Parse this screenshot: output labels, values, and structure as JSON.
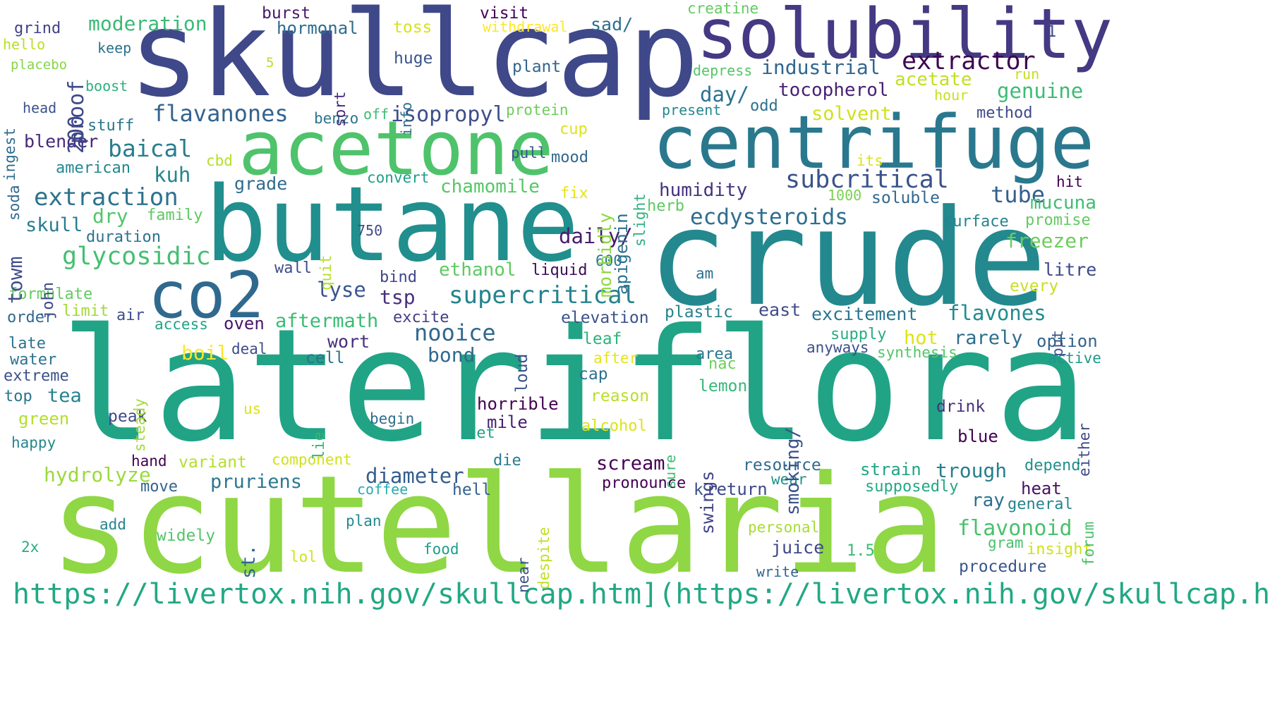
{
  "cloud": {
    "words": [
      {
        "text": "lateriflora",
        "color": "#21a386"
      },
      {
        "text": "scutellaria",
        "color": "#8fd744"
      },
      {
        "text": "skullcap",
        "color": "#3f4889"
      },
      {
        "text": "crude",
        "color": "#23898e"
      },
      {
        "text": "butane",
        "color": "#218f8d"
      },
      {
        "text": "centrifuge",
        "color": "#2a788e"
      },
      {
        "text": "acetone",
        "color": "#4ec36b"
      },
      {
        "text": "solubility",
        "color": "#443983"
      },
      {
        "text": "co2",
        "color": "#30698e"
      },
      {
        "text": "https://livertox.nih.gov/skullcap.htm](https://livertox.nih.gov/skullcap.htm",
        "color": "#22a884"
      },
      {
        "text": "extractor",
        "color": "#3e0751"
      },
      {
        "text": "subcritical",
        "color": "#3b528b"
      },
      {
        "text": "extraction",
        "color": "#2c728e"
      },
      {
        "text": "glycosidic",
        "color": "#44bf70"
      },
      {
        "text": "supercritical",
        "color": "#25838e"
      },
      {
        "text": "flavanones",
        "color": "#33638d"
      },
      {
        "text": "ecdysteroids",
        "color": "#2e6e8e"
      },
      {
        "text": "industrial",
        "color": "#31668e"
      },
      {
        "text": "tocopherol",
        "color": "#482173"
      },
      {
        "text": "genuine",
        "color": "#3dbc74"
      },
      {
        "text": "baical",
        "color": "#287d8e"
      },
      {
        "text": "isopropyl",
        "color": "#3d4e8a"
      },
      {
        "text": "moderation",
        "color": "#3aba76"
      },
      {
        "text": "hormonal",
        "color": "#2f6b8e"
      },
      {
        "text": "acetate",
        "color": "#c2df23"
      },
      {
        "text": "solvent",
        "color": "#d0e11c"
      },
      {
        "text": "day/",
        "color": "#2c718e"
      },
      {
        "text": "humidity",
        "color": "#46337f"
      },
      {
        "text": "tube",
        "color": "#34608d"
      },
      {
        "text": "mucuna",
        "color": "#40bd72"
      },
      {
        "text": "freezer",
        "color": "#6ccd5a"
      },
      {
        "text": "chamomile",
        "color": "#56c667"
      },
      {
        "text": "ethanol",
        "color": "#5ec962"
      },
      {
        "text": "daily/",
        "color": "#481c6e"
      },
      {
        "text": "lyse",
        "color": "#39568c"
      },
      {
        "text": "tsp",
        "color": "#472f7d"
      },
      {
        "text": "nooice",
        "color": "#31688e"
      },
      {
        "text": "aftermath",
        "color": "#3bbb75"
      },
      {
        "text": "flavones",
        "color": "#228c8d"
      },
      {
        "text": "excitement",
        "color": "#2a768e"
      },
      {
        "text": "flavonoid",
        "color": "#4ac16d"
      },
      {
        "text": "diameter",
        "color": "#365d8d"
      },
      {
        "text": "pruriens",
        "color": "#2a788e"
      },
      {
        "text": "hydrolyze",
        "color": "#9bd93c"
      },
      {
        "text": "scream",
        "color": "#440154"
      },
      {
        "text": "trough",
        "color": "#277f8e"
      },
      {
        "text": "resource",
        "color": "#2f6c8e"
      },
      {
        "text": "strain",
        "color": "#20a386"
      },
      {
        "text": "procedure",
        "color": "#3a548c"
      },
      {
        "text": "juice",
        "color": "#3e4989"
      },
      {
        "text": "kuh",
        "color": "#25858e"
      },
      {
        "text": "grade",
        "color": "#2f6c8e"
      },
      {
        "text": "dry",
        "color": "#52c569"
      },
      {
        "text": "skull",
        "color": "#287c8e"
      },
      {
        "text": "blender",
        "color": "#482878"
      },
      {
        "text": "american",
        "color": "#24868e"
      },
      {
        "text": "stuff",
        "color": "#2a768e"
      },
      {
        "text": "burst",
        "color": "#48186a"
      },
      {
        "text": "visit",
        "color": "#440154"
      },
      {
        "text": "toss",
        "color": "#d8e219"
      },
      {
        "text": "sad/",
        "color": "#2e6d8e"
      },
      {
        "text": "withdrawal",
        "color": "#fde725"
      },
      {
        "text": "creatine",
        "color": "#62cb5f"
      },
      {
        "text": "huge",
        "color": "#3a548c"
      },
      {
        "text": "plant",
        "color": "#32658e"
      },
      {
        "text": "grind",
        "color": "#404387"
      },
      {
        "text": "hello",
        "color": "#bade28"
      },
      {
        "text": "keep",
        "color": "#2c718e"
      },
      {
        "text": "placebo",
        "color": "#86d549"
      },
      {
        "text": "boost",
        "color": "#2cb17e"
      },
      {
        "text": "head",
        "color": "#3b528b"
      },
      {
        "text": "benzo",
        "color": "#2b748e"
      },
      {
        "text": "off",
        "color": "#3bbb75"
      },
      {
        "text": "protein",
        "color": "#6ccd5a"
      },
      {
        "text": "cup",
        "color": "#dde318"
      },
      {
        "text": "pull",
        "color": "#39568c"
      },
      {
        "text": "mood",
        "color": "#31688e"
      },
      {
        "text": "convert",
        "color": "#1f9e89"
      },
      {
        "text": "cbd",
        "color": "#b5de2b"
      },
      {
        "text": "fix",
        "color": "#e5e419"
      },
      {
        "text": "family",
        "color": "#5ec962"
      },
      {
        "text": "duration",
        "color": "#2c728e"
      },
      {
        "text": "750",
        "color": "#3e4a89"
      },
      {
        "text": "wall",
        "color": "#3d4e8a"
      },
      {
        "text": "liquid",
        "color": "#3f0c58"
      },
      {
        "text": "600",
        "color": "#2a788e"
      },
      {
        "text": "bind",
        "color": "#404588"
      },
      {
        "text": "formulate",
        "color": "#62cb5f"
      },
      {
        "text": "limit",
        "color": "#a2da37"
      },
      {
        "text": "air",
        "color": "#3c4f8a"
      },
      {
        "text": "order",
        "color": "#30698e"
      },
      {
        "text": "access",
        "color": "#1fa287"
      },
      {
        "text": "oven",
        "color": "#481769"
      },
      {
        "text": "excite",
        "color": "#423f85"
      },
      {
        "text": "wort",
        "color": "#46307e"
      },
      {
        "text": "elevation",
        "color": "#3a538b"
      },
      {
        "text": "plastic",
        "color": "#26828e"
      },
      {
        "text": "east",
        "color": "#3e4c8a"
      },
      {
        "text": "am",
        "color": "#2c718e"
      },
      {
        "text": "every",
        "color": "#c8e020"
      },
      {
        "text": "litre",
        "color": "#3e4989"
      },
      {
        "text": "supply",
        "color": "#26ad81"
      },
      {
        "text": "hot",
        "color": "#dde318"
      },
      {
        "text": "rarely",
        "color": "#2e6e8e"
      },
      {
        "text": "option",
        "color": "#33638d"
      },
      {
        "text": "anyways",
        "color": "#3d4e8a"
      },
      {
        "text": "synthesis",
        "color": "#54c568"
      },
      {
        "text": "area",
        "color": "#2b758e"
      },
      {
        "text": "nac",
        "color": "#6ece58"
      },
      {
        "text": "active",
        "color": "#1f978b"
      },
      {
        "text": "boil",
        "color": "#fde725"
      },
      {
        "text": "bond",
        "color": "#30698e"
      },
      {
        "text": "cell",
        "color": "#2c718e"
      },
      {
        "text": "deal",
        "color": "#3e4c8a"
      },
      {
        "text": "leaf",
        "color": "#2db27d"
      },
      {
        "text": "after",
        "color": "#e5e419"
      },
      {
        "text": "late",
        "color": "#2b748e"
      },
      {
        "text": "water",
        "color": "#2c728e"
      },
      {
        "text": "extreme",
        "color": "#3b528b"
      },
      {
        "text": "top",
        "color": "#2b748e"
      },
      {
        "text": "tea",
        "color": "#26828e"
      },
      {
        "text": "green",
        "color": "#b5de2b"
      },
      {
        "text": "happy",
        "color": "#23888e"
      },
      {
        "text": "peak",
        "color": "#3e4a89"
      },
      {
        "text": "begin",
        "color": "#2e6d8e"
      },
      {
        "text": "set",
        "color": "#1fa287"
      },
      {
        "text": "us",
        "color": "#dde318"
      },
      {
        "text": "cap",
        "color": "#2d708e"
      },
      {
        "text": "reason",
        "color": "#bade28"
      },
      {
        "text": "lemon",
        "color": "#35b779"
      },
      {
        "text": "horrible",
        "color": "#440154"
      },
      {
        "text": "mile",
        "color": "#482173"
      },
      {
        "text": "alcohol",
        "color": "#dde318"
      },
      {
        "text": "drink",
        "color": "#46307e"
      },
      {
        "text": "blue",
        "color": "#440154"
      },
      {
        "text": "hand",
        "color": "#440154"
      },
      {
        "text": "variant",
        "color": "#b5de2b"
      },
      {
        "text": "component",
        "color": "#d0e11c"
      },
      {
        "text": "die",
        "color": "#287c8e"
      },
      {
        "text": "move",
        "color": "#32648e"
      },
      {
        "text": "hell",
        "color": "#34618d"
      },
      {
        "text": "coffee",
        "color": "#25abb2"
      },
      {
        "text": "pronounce",
        "color": "#440154"
      },
      {
        "text": "k",
        "color": "#3b528b"
      },
      {
        "text": "return",
        "color": "#3e4989"
      },
      {
        "text": "wear",
        "color": "#21918c"
      },
      {
        "text": "supposedly",
        "color": "#22a884"
      },
      {
        "text": "heat",
        "color": "#471365"
      },
      {
        "text": "general",
        "color": "#25848e"
      },
      {
        "text": "ray",
        "color": "#2c718e"
      },
      {
        "text": "depend",
        "color": "#21918c"
      },
      {
        "text": "add",
        "color": "#25848e"
      },
      {
        "text": "widely",
        "color": "#54c568"
      },
      {
        "text": "plan",
        "color": "#23898e"
      },
      {
        "text": "2x",
        "color": "#26ad81"
      },
      {
        "text": "lol",
        "color": "#d0e11c"
      },
      {
        "text": "food",
        "color": "#1f9e89"
      },
      {
        "text": "personal",
        "color": "#a8db34"
      },
      {
        "text": "write",
        "color": "#32658e"
      },
      {
        "text": "1.5",
        "color": "#3bbb75"
      },
      {
        "text": "gram",
        "color": "#4ac16d"
      },
      {
        "text": "insight",
        "color": "#d0e11c"
      },
      {
        "text": "run",
        "color": "#c2df23"
      },
      {
        "text": "hour",
        "color": "#c8e020"
      },
      {
        "text": "odd",
        "color": "#2d708e"
      },
      {
        "text": "present",
        "color": "#23888e"
      },
      {
        "text": "method",
        "color": "#3e4989"
      },
      {
        "text": "its",
        "color": "#dde318"
      },
      {
        "text": "hit",
        "color": "#440154"
      },
      {
        "text": "1000",
        "color": "#7ad151"
      },
      {
        "text": "soluble",
        "color": "#31688e"
      },
      {
        "text": "herb",
        "color": "#5ec962"
      },
      {
        "text": "surface",
        "color": "#26828e"
      },
      {
        "text": "promise",
        "color": "#62cb5f"
      },
      {
        "text": "depress",
        "color": "#54c568"
      },
      {
        "text": "1",
        "color": "#3e4989"
      },
      {
        "text": "5",
        "color": "#b5de2b"
      },
      {
        "text": "proof",
        "color": "#3e4989"
      },
      {
        "text": "200",
        "color": "#3e4989"
      },
      {
        "text": "ingest",
        "color": "#2e6d8e"
      },
      {
        "text": "soda",
        "color": "#31688e"
      },
      {
        "text": "towm",
        "color": "#3d4e8a"
      },
      {
        "text": "john",
        "color": "#3e4a89"
      },
      {
        "text": "sort",
        "color": "#482878"
      },
      {
        "text": "info",
        "color": "#2c718e"
      },
      {
        "text": "morbidly",
        "color": "#8fd744"
      },
      {
        "text": "apigenin",
        "color": "#2c728e"
      },
      {
        "text": "slight",
        "color": "#2db27d"
      },
      {
        "text": "quit",
        "color": "#b5de2b"
      },
      {
        "text": "smoking/",
        "color": "#3b528b"
      },
      {
        "text": "loud",
        "color": "#3b528b"
      },
      {
        "text": "steady",
        "color": "#a2da37"
      },
      {
        "text": "lie",
        "color": "#35b779"
      },
      {
        "text": "swings",
        "color": "#414487"
      },
      {
        "text": "st.",
        "color": "#30698e"
      },
      {
        "text": "sure",
        "color": "#3dbc74"
      },
      {
        "text": "despite",
        "color": "#c2df23"
      },
      {
        "text": "near",
        "color": "#3b528b"
      },
      {
        "text": "put",
        "color": "#3b528b"
      },
      {
        "text": "either",
        "color": "#3e4989"
      },
      {
        "text": "forum",
        "color": "#4ac16d"
      }
    ]
  }
}
